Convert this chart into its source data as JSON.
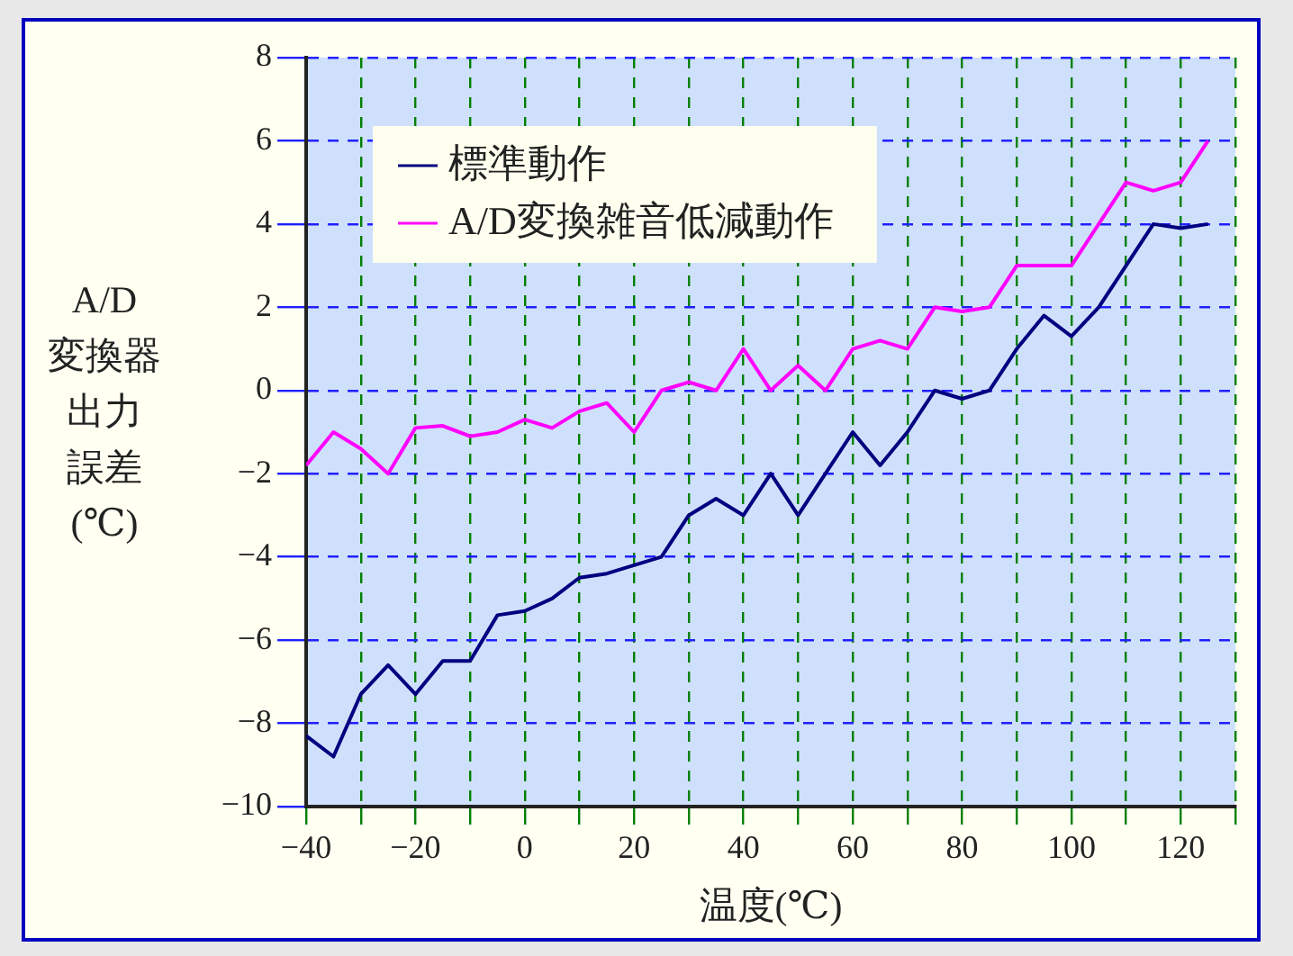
{
  "chart_data": {
    "type": "line",
    "xlabel": "温度(℃)",
    "ylabel": "A/D変換器出力誤差(℃)",
    "x": [
      -40,
      -35,
      -30,
      -25,
      -20,
      -15,
      -10,
      -5,
      0,
      5,
      10,
      15,
      20,
      25,
      30,
      35,
      40,
      45,
      50,
      55,
      60,
      65,
      70,
      75,
      80,
      85,
      90,
      95,
      100,
      105,
      110,
      115,
      120,
      125
    ],
    "series": [
      {
        "name": "標準動作",
        "color": "#000080",
        "values": [
          -8.3,
          -8.8,
          -7.3,
          -6.6,
          -7.3,
          -6.5,
          -6.5,
          -5.4,
          -5.3,
          -5.0,
          -4.5,
          -4.4,
          -4.2,
          -4.0,
          -3.0,
          -2.6,
          -3.0,
          -2.0,
          -3.0,
          -2.0,
          -1.0,
          -1.8,
          -1.0,
          0.0,
          -0.2,
          0.0,
          1.0,
          1.8,
          1.3,
          2.0,
          3.0,
          4.0,
          3.9,
          4.0
        ]
      },
      {
        "name": "A/D変換雑音低減動作",
        "color": "#ff00ff",
        "values": [
          -1.8,
          -1.0,
          -1.4,
          -2.0,
          -0.9,
          -0.85,
          -1.1,
          -1.0,
          -0.7,
          -0.9,
          -0.5,
          -0.3,
          -1.0,
          0.0,
          0.2,
          0.0,
          1.0,
          0.0,
          0.6,
          0.0,
          1.0,
          1.2,
          1.0,
          2.0,
          1.9,
          2.0,
          3.0,
          3.0,
          3.0,
          4.0,
          5.0,
          4.8,
          5.0,
          6.0
        ]
      }
    ],
    "xlim": [
      -40,
      130
    ],
    "xticks": [
      {
        "value": -40,
        "label": "−40"
      },
      {
        "value": -30,
        "label": null
      },
      {
        "value": -20,
        "label": "−20"
      },
      {
        "value": -10,
        "label": null
      },
      0,
      {
        "value": 10,
        "label": null
      },
      20,
      {
        "value": 30,
        "label": null
      },
      40,
      {
        "value": 50,
        "label": null
      },
      60,
      {
        "value": 70,
        "label": null
      },
      80,
      {
        "value": 90,
        "label": null
      },
      100,
      {
        "value": 110,
        "label": null
      },
      120,
      {
        "value": 130,
        "label": null
      }
    ],
    "ylim": [
      -10,
      8
    ],
    "yticks": [
      {
        "value": -10,
        "label": "−10"
      },
      {
        "value": -8,
        "label": "−8"
      },
      {
        "value": -6,
        "label": "−6"
      },
      {
        "value": -4,
        "label": "−4"
      },
      {
        "value": -2,
        "label": "−2"
      },
      0,
      2,
      4,
      6,
      8
    ],
    "grid": true,
    "legend": "top left",
    "marker": "none",
    "line_style": "solid"
  }
}
